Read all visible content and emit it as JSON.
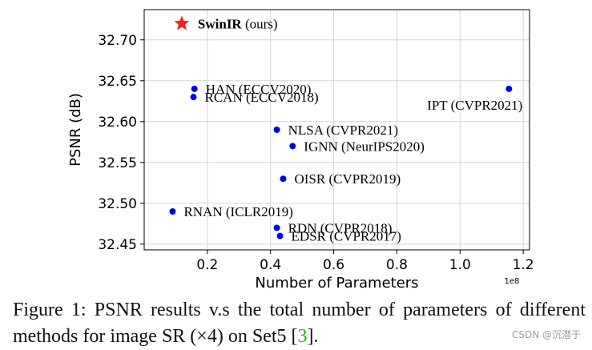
{
  "chart_data": {
    "type": "scatter",
    "xlabel": "Number of Parameters",
    "ylabel": "PSNR (dB)",
    "x_exponent": "1e8",
    "xlim": [
      0.0,
      1.22
    ],
    "ylim": [
      32.443,
      32.737
    ],
    "xticks": [
      0.2,
      0.4,
      0.6,
      0.8,
      1.0,
      1.2
    ],
    "xtick_labels": [
      "0.2",
      "0.4",
      "0.6",
      "0.8",
      "1.0",
      "1.2"
    ],
    "yticks": [
      32.45,
      32.5,
      32.55,
      32.6,
      32.65,
      32.7
    ],
    "ytick_labels": [
      "32.45",
      "32.50",
      "32.55",
      "32.60",
      "32.65",
      "32.70"
    ],
    "grid": true,
    "highlight": {
      "name": "SwinIR",
      "suffix": " (ours)",
      "x": 0.119,
      "y": 32.72,
      "marker": "star",
      "color": "#ff1a1a"
    },
    "points": [
      {
        "name": "HAN (ECCV2020)",
        "x": 0.159,
        "y": 32.64,
        "label_side": "right"
      },
      {
        "name": "RCAN (ECCV2018)",
        "x": 0.156,
        "y": 32.63,
        "label_side": "right"
      },
      {
        "name": "IPT (CVPR2021)",
        "x": 1.155,
        "y": 32.64,
        "label_side": "below-left"
      },
      {
        "name": "NLSA (CVPR2021)",
        "x": 0.42,
        "y": 32.59,
        "label_side": "right"
      },
      {
        "name": "IGNN (NeurIPS2020)",
        "x": 0.47,
        "y": 32.57,
        "label_side": "right"
      },
      {
        "name": "OISR (CVPR2019)",
        "x": 0.44,
        "y": 32.53,
        "label_side": "right"
      },
      {
        "name": "RNAN (ICLR2019)",
        "x": 0.09,
        "y": 32.49,
        "label_side": "right"
      },
      {
        "name": "RDN (CVPR2018)",
        "x": 0.42,
        "y": 32.47,
        "label_side": "right"
      },
      {
        "name": "EDSR (CVPR2017)",
        "x": 0.43,
        "y": 32.46,
        "label_side": "right"
      }
    ],
    "point_color": "#0000ee"
  },
  "caption": {
    "prefix": "Figure 1: PSNR results v.s the total number of parameters of different methods for image SR (×4) on Set5 [",
    "cite": "3",
    "suffix": "]."
  },
  "watermark": "CSDN @沉潜于"
}
